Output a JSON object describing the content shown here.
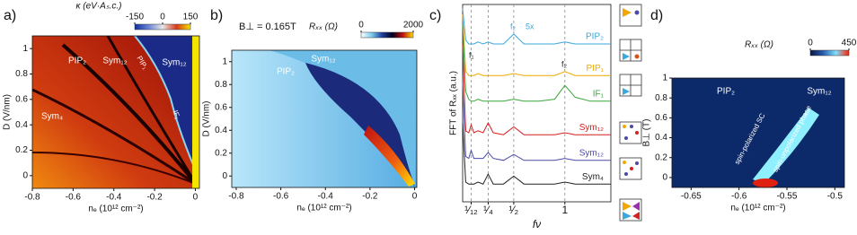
{
  "chart_data": [
    {
      "type": "heatmap",
      "panel_label": "a)",
      "xlabel": "nₑ (10¹² cm⁻²)",
      "ylabel": "D (V/nm)",
      "xlim": [
        -0.8,
        0.02
      ],
      "xticks": [
        -0.8,
        -0.6,
        -0.4,
        -0.2,
        0
      ],
      "ylim": [
        -0.1,
        1.1
      ],
      "yticks": [
        0,
        0.2,
        0.4,
        0.6,
        0.8,
        1
      ],
      "colorbar_title": "κ (eV·Aₛ.c.)",
      "colorlim": [
        -150,
        150
      ],
      "colorticks": [
        -150,
        0,
        150
      ],
      "colorbar_colors": [
        "#1030a0",
        "#6b86d8",
        "#e8e8e8",
        "#d83a18",
        "#f5e400"
      ],
      "region_labels": [
        "PIP₂",
        "Sym₁₂",
        "PIP₁",
        "Sym₁₂",
        "Sym₄",
        "IF₁"
      ]
    },
    {
      "type": "heatmap",
      "panel_label": "b)",
      "xlabel": "nₑ (10¹² cm⁻²)",
      "ylabel": "D (V/nm)",
      "xlim": [
        -0.82,
        0.01
      ],
      "xticks": [
        -0.8,
        -0.6,
        -0.4,
        -0.2,
        0
      ],
      "ylim": [
        -0.1,
        1.1
      ],
      "yticks": [
        0,
        0.2,
        0.4,
        0.6,
        0.8,
        1
      ],
      "annotation": "B⊥ = 0.165T",
      "colorbar_title": "Rₓₓ (Ω)",
      "colorlim": [
        0,
        2000
      ],
      "colorticks": [
        0,
        2000
      ],
      "colorbar_colors": [
        "#ffffff",
        "#7fd0f0",
        "#2040a0",
        "#000020",
        "#c01010",
        "#ffe000"
      ],
      "region_labels": [
        "PIP₂",
        "Sym₁₂"
      ]
    },
    {
      "type": "line",
      "panel_label": "c)",
      "xlabel": "fν",
      "ylabel": "FFT of Rₓₓ (a.u.)",
      "xlim": [
        0,
        1.45
      ],
      "ylim": [
        0,
        100
      ],
      "xticks": [
        {
          "value": 0.08333,
          "label": "¹⁄₁₂"
        },
        {
          "value": 0.25,
          "label": "¹⁄₄"
        },
        {
          "value": 0.5,
          "label": "¹⁄₂"
        },
        1
      ],
      "annotations": [
        "f₂",
        "5x",
        "f₁",
        "f₂"
      ],
      "x": [
        0,
        0.03,
        0.06,
        0.0833,
        0.11,
        0.15,
        0.2,
        0.25,
        0.3,
        0.4,
        0.5,
        0.6,
        0.75,
        0.9,
        1,
        1.1,
        1.25,
        1.45
      ],
      "series": [
        {
          "name": "PIP₂",
          "color": "#3aa8dc",
          "values": [
            98,
            82,
            80,
            80,
            80,
            81,
            80,
            81,
            80,
            80,
            85,
            80,
            80,
            80,
            81,
            80,
            80,
            80
          ]
        },
        {
          "name": "PIP₁",
          "color": "#f0a800",
          "values": [
            95,
            66,
            64,
            64,
            64,
            65,
            64,
            64,
            64,
            64,
            65,
            64,
            64,
            64,
            66,
            64,
            64,
            64
          ]
        },
        {
          "name": "IF₁",
          "color": "#3aa53a",
          "values": [
            90,
            56,
            52,
            51,
            51,
            52,
            51,
            51,
            51,
            51,
            52,
            51,
            51,
            52,
            59,
            53,
            51,
            51
          ]
        },
        {
          "name": "Sym₁₂",
          "color": "#d42020",
          "values": [
            80,
            36,
            35,
            39,
            35,
            36,
            35,
            40,
            35,
            34,
            38,
            34,
            34,
            34,
            35,
            34,
            34,
            34
          ]
        },
        {
          "name": "Sym₁₂",
          "color": "#4a4aa8",
          "values": [
            60,
            23,
            22,
            26,
            22,
            22,
            22,
            25,
            22,
            21,
            24,
            21,
            21,
            21,
            22,
            21,
            21,
            21
          ]
        },
        {
          "name": "Sym₄",
          "color": "#222222",
          "values": [
            40,
            10,
            9,
            9,
            9,
            10,
            9,
            14,
            9,
            9,
            13,
            9,
            9,
            9,
            10,
            9,
            9,
            9
          ]
        }
      ]
    },
    {
      "type": "heatmap",
      "panel_label": "d)",
      "xlabel": "nₑ (10¹² cm⁻²)",
      "ylabel": "B⊥ (T)",
      "xlim": [
        -0.67,
        -0.49
      ],
      "xticks": [
        -0.65,
        -0.6,
        -0.55,
        -0.5
      ],
      "ylim": [
        -0.1,
        1
      ],
      "yticks": [
        0,
        0.2,
        0.4,
        0.6,
        0.8,
        1
      ],
      "colorbar_title": "Rₓₓ (Ω)",
      "colorlim": [
        0,
        450
      ],
      "colorticks": [
        0,
        450
      ],
      "colorbar_colors": [
        "#0a1540",
        "#2a5cb0",
        "#80e0ff",
        "#ff2000"
      ],
      "region_labels": [
        "PIP₂",
        "Sym₁₂",
        "spin-polarized SC",
        "spin-unpolarized phase"
      ]
    }
  ]
}
